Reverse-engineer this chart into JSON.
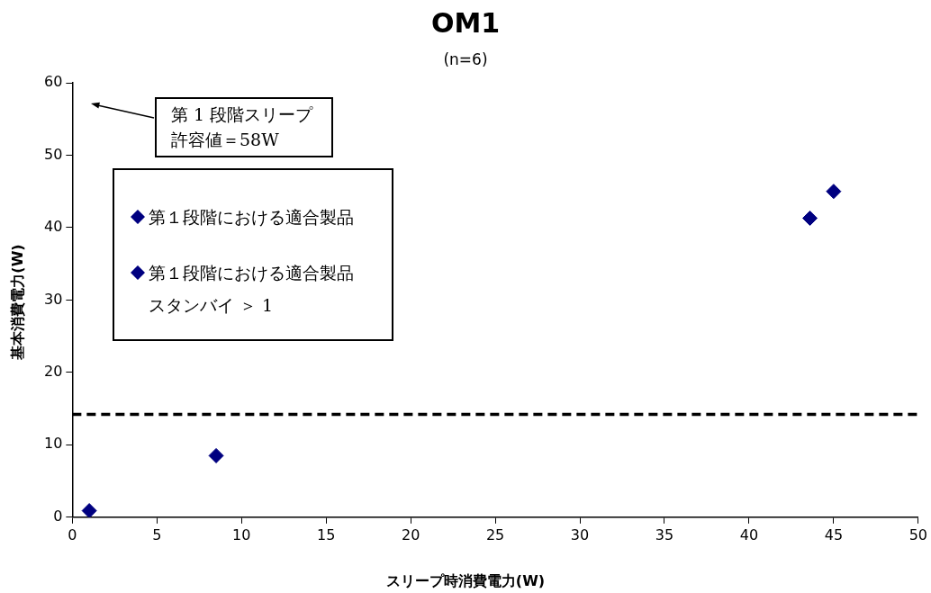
{
  "chart_data": {
    "type": "scatter",
    "title": "OM1",
    "subtitle": "(n=6)",
    "xlabel": "スリープ時消費電力(W)",
    "ylabel": "基本消費電力(W)",
    "xlim": [
      0,
      50
    ],
    "xticks": [
      0,
      5,
      10,
      15,
      20,
      25,
      30,
      35,
      40,
      45,
      50
    ],
    "ylim": [
      0,
      60
    ],
    "yticks": [
      0,
      10,
      20,
      30,
      40,
      50,
      60
    ],
    "grid": false,
    "legend": "top left",
    "marker": "diamond",
    "series": [
      {
        "name": "第１段階における適合製品",
        "color": "#000080",
        "x": [
          1,
          8.5,
          45
        ],
        "values": [
          0.9,
          8.5,
          45
        ]
      },
      {
        "name": "第１段階における適合製品スタンバイ ＞ 1",
        "color": "#000080",
        "x": [
          43.6
        ],
        "values": [
          41.3
        ]
      }
    ],
    "ref_lines": [
      {
        "axis": "y",
        "value": 14.2,
        "line_style": "dashed",
        "color": "#000000"
      }
    ],
    "annotations": [
      "第 1 段階スリープ許容値＝58W"
    ]
  }
}
